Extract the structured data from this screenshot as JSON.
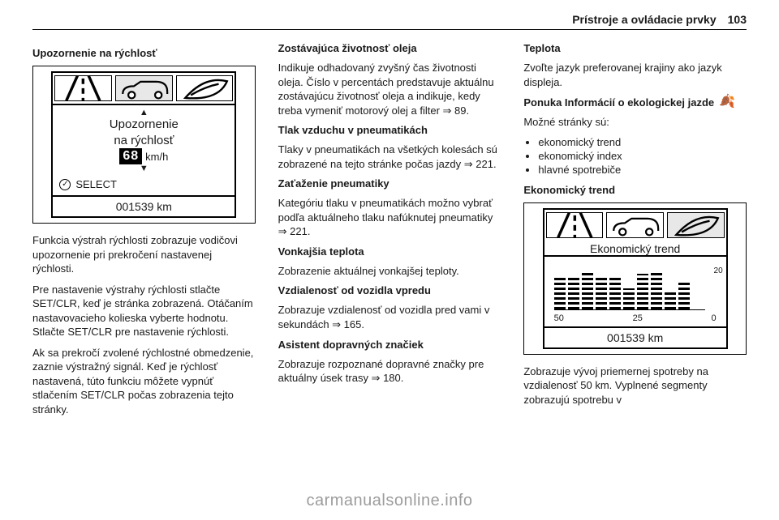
{
  "header": {
    "section_title": "Prístroje a ovládacie prvky",
    "page_number": "103"
  },
  "col1": {
    "heading": "Upozornenie na rýchlosť",
    "fig": {
      "lane_icon": "lane-departure-icon",
      "car_icon": "car-outline-icon",
      "leaf_icon": "eco-leaf-icon",
      "msg_line1": "Upozornenie",
      "msg_line2": "na rýchlosť",
      "speed_value": "68",
      "speed_unit": "km/h",
      "select_label": "SELECT",
      "odo": "001539 km"
    },
    "p1": "Funkcia výstrah rýchlosti zobrazuje vodičovi upozornenie pri prekročení nastavenej rýchlosti.",
    "p2": "Pre nastavenie výstrahy rýchlosti stlačte SET/CLR, keď je stránka zobrazená. Otáčaním nastavovacieho kolieska vyberte hodnotu. Stlačte SET/CLR pre nastavenie rýchlosti.",
    "p3": "Ak sa prekročí zvolené rýchlostné obmedzenie, zaznie výstražný signál. Keď je rýchlosť nastavená, túto funkciu môžete vypnúť stlačením SET/CLR počas zobrazenia tejto stránky."
  },
  "col2": {
    "s1_head": "Zostávajúca životnosť oleja",
    "s1_body": "Indikuje odhadovaný zvyšný čas životnosti oleja. Číslo v percentách predstavuje aktuálnu zostávajúcu životnosť oleja a indikuje, kedy treba vymeniť motorový olej a filter ⇒ 89.",
    "s2_head": "Tlak vzduchu v pneumatikách",
    "s2_body": "Tlaky v pneumatikách na všetkých kolesách sú zobrazené na tejto stránke počas jazdy ⇒ 221.",
    "s3_head": "Zaťaženie pneumatiky",
    "s3_body": "Kategóriu tlaku v pneumatikách možno vybrať podľa aktuálneho tlaku nafúknutej pneumatiky ⇒ 221.",
    "s4_head": "Vonkajšia teplota",
    "s4_body": "Zobrazenie aktuálnej vonkajšej teploty.",
    "s5_head": "Vzdialenosť od vozidla vpredu",
    "s5_body": "Zobrazuje vzdialenosť od vozidla pred vami v sekundách ⇒ 165.",
    "s6_head": "Asistent dopravných značiek",
    "s6_body": "Zobrazuje rozpoznané dopravné značky pre aktuálny úsek trasy ⇒ 180."
  },
  "col3": {
    "s1_head": "Teplota",
    "s1_body": "Zvoľte jazyk preferovanej krajiny ako jazyk displeja.",
    "eco_head": "Ponuka Informácií o ekologickej jazde",
    "bullets_intro": "Možné stránky sú:",
    "b1": "ekonomický trend",
    "b2": "ekonomický index",
    "b3": "hlavné spotrebiče",
    "fig_title": "Ekonomický trend",
    "fig": {
      "lane_icon": "lane-departure-icon",
      "car_icon": "car-outline-icon",
      "leaf_icon": "eco-leaf-icon",
      "title": "Ekonomický trend",
      "bars": [
        42,
        40,
        46,
        42,
        40,
        26,
        44,
        48,
        24,
        34
      ],
      "right_tick": "20",
      "x_left": "50",
      "x_mid": "25",
      "x_right": "0",
      "odo": "001539 km"
    },
    "p1": "Zobrazuje vývoj priemernej spotreby na vzdialenosť 50 km. Vyplnené segmenty zobrazujú spotrebu v"
  },
  "footer": "carmanualsonline.info",
  "colors": {
    "text": "#1a1a1a",
    "rule": "#000000",
    "footer": "#9c9c9c",
    "bg": "#ffffff"
  }
}
